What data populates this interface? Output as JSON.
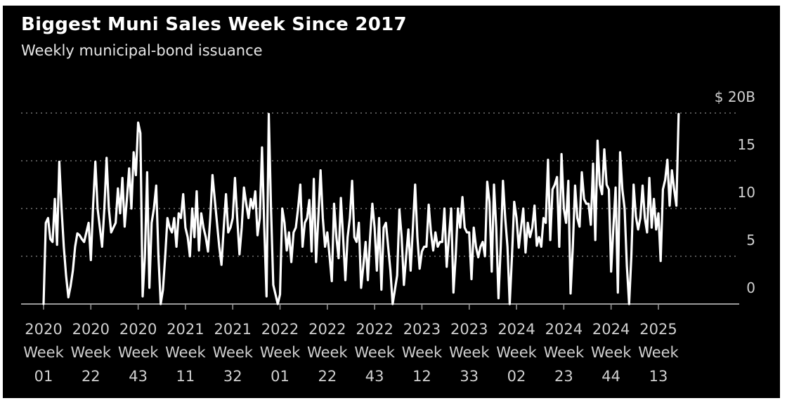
{
  "chart_data": {
    "type": "line",
    "title": "Biggest Muni Sales Week Since 2017",
    "subtitle": "Weekly municipal-bond issuance",
    "xlabel": "",
    "ylabel": "",
    "ylim": [
      0,
      20
    ],
    "y_ticks": [
      0,
      5,
      10,
      15,
      20
    ],
    "y_tick_labels": [
      "0",
      "5",
      "10",
      "15",
      "$ 20B"
    ],
    "grid": true,
    "frequency": "weekly",
    "x_ticks": [
      {
        "week_index": 0,
        "year": "2020",
        "label": "Week",
        "week": "01"
      },
      {
        "week_index": 21,
        "year": "2020",
        "label": "Week",
        "week": "22"
      },
      {
        "week_index": 42,
        "year": "2020",
        "label": "Week",
        "week": "43"
      },
      {
        "week_index": 63,
        "year": "2021",
        "label": "Week",
        "week": "11"
      },
      {
        "week_index": 84,
        "year": "2021",
        "label": "Week",
        "week": "32"
      },
      {
        "week_index": 105,
        "year": "2022",
        "label": "Week",
        "week": "01"
      },
      {
        "week_index": 126,
        "year": "2022",
        "label": "Week",
        "week": "22"
      },
      {
        "week_index": 147,
        "year": "2022",
        "label": "Week",
        "week": "43"
      },
      {
        "week_index": 168,
        "year": "2023",
        "label": "Week",
        "week": "12"
      },
      {
        "week_index": 189,
        "year": "2023",
        "label": "Week",
        "week": "33"
      },
      {
        "week_index": 210,
        "year": "2024",
        "label": "Week",
        "week": "02"
      },
      {
        "week_index": 231,
        "year": "2024",
        "label": "Week",
        "week": "23"
      },
      {
        "week_index": 252,
        "year": "2024",
        "label": "Week",
        "week": "44"
      },
      {
        "week_index": 273,
        "year": "2025",
        "label": "Week",
        "week": "13"
      }
    ],
    "series": [
      {
        "color": "#ffffff",
        "values": [
          0,
          8.5,
          9,
          6.8,
          6.5,
          11,
          6.2,
          14.9,
          10,
          6,
          3,
          0.7,
          1.9,
          3.5,
          6,
          7.4,
          7.2,
          6.8,
          6.5,
          7.5,
          8.5,
          4.6,
          10.3,
          14.9,
          10,
          8,
          6,
          10,
          15.3,
          10,
          7.5,
          8,
          8.5,
          12.1,
          9.5,
          13.2,
          8.1,
          11,
          14.2,
          10,
          15.9,
          13.5,
          19,
          17.9,
          0.8,
          5,
          13.8,
          1.7,
          8.5,
          10,
          12.4,
          5,
          0,
          1.5,
          5,
          9,
          8,
          7.5,
          9,
          6,
          9.5,
          9,
          11.5,
          8,
          7,
          5,
          10,
          7,
          11.8,
          5.6,
          9.5,
          8,
          7,
          5.5,
          9,
          13.5,
          11,
          8.5,
          6,
          4.1,
          8,
          11.5,
          7.5,
          8,
          9,
          13.2,
          9,
          5.2,
          8,
          12.2,
          10.5,
          9,
          11,
          10,
          11.8,
          7.2,
          9,
          16.4,
          8,
          0.8,
          19.9,
          10,
          2,
          1,
          0,
          1,
          10,
          8.5,
          5.6,
          7.5,
          4.4,
          7.5,
          8,
          10,
          12.5,
          6,
          8.5,
          9,
          10.9,
          5.5,
          13.1,
          4.4,
          9,
          14,
          9,
          6,
          7.5,
          5,
          2.4,
          10.5,
          7,
          4.8,
          11.1,
          7,
          2.5,
          7,
          9,
          12.9,
          7,
          6.5,
          8.5,
          1.7,
          4,
          6.5,
          2.5,
          7,
          10.5,
          8,
          3.5,
          9,
          1.5,
          8,
          8.5,
          6,
          3.5,
          0,
          1.5,
          3,
          9.9,
          7,
          2,
          5,
          7.8,
          3.5,
          8,
          12.5,
          7,
          3.7,
          5.5,
          6,
          6,
          10.4,
          7.5,
          5.6,
          7.5,
          6,
          6.5,
          6.5,
          10,
          3.9,
          7,
          10,
          1.2,
          5,
          10,
          8,
          11.2,
          8,
          7.5,
          7.5,
          2.6,
          8,
          6,
          4.9,
          6,
          6.5,
          5,
          12.8,
          10.7,
          3.4,
          12.5,
          8,
          0.6,
          6,
          12.9,
          9,
          6,
          0,
          5,
          10.7,
          9,
          5.9,
          8,
          10,
          5.4,
          8.5,
          7,
          8,
          10.3,
          6.1,
          7,
          6,
          9,
          8.5,
          15.1,
          6.7,
          12,
          12.5,
          13.3,
          6,
          15.7,
          10,
          8.5,
          12.9,
          1.1,
          6,
          12.4,
          9,
          8.1,
          13.8,
          11,
          10.5,
          10.5,
          8.3,
          14.7,
          6.7,
          17.1,
          12.5,
          11.5,
          16.2,
          12.5,
          12,
          3.4,
          8,
          12.2,
          1.2,
          15.9,
          12,
          10,
          4,
          0,
          5,
          12.5,
          9.2,
          7.8,
          9,
          12.4,
          9,
          7.5,
          13.2,
          8,
          11,
          7.8,
          9.5,
          4.5,
          12,
          13,
          15.1,
          10.3,
          14,
          12,
          10.3,
          19.9
        ]
      }
    ]
  }
}
